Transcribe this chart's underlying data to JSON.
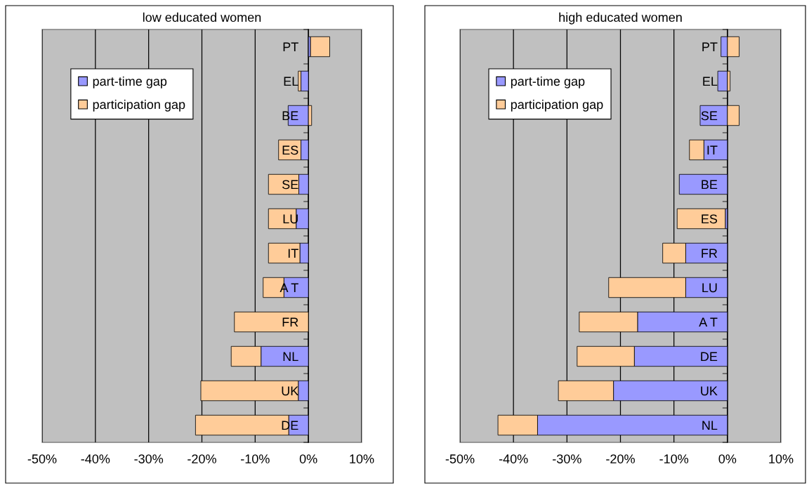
{
  "chart_data": [
    {
      "type": "bar",
      "title": "low educated women",
      "orientation": "horizontal",
      "stacked": true,
      "grid": "x",
      "legend": "top left",
      "categories": [
        "PT",
        "EL",
        "BE",
        "ES",
        "SE",
        "LU",
        "IT",
        "A T",
        "FR",
        "NL",
        "UK",
        "DE"
      ],
      "series": [
        {
          "name": "part-time gap",
          "color": "#9999ff",
          "values": [
            0.4,
            -1.4,
            -3.8,
            -1.4,
            -1.8,
            -2.3,
            -1.6,
            -4.6,
            null,
            -8.9,
            -1.9,
            -3.7
          ]
        },
        {
          "name": "participation gap",
          "color": "#ffcc99",
          "values": [
            3.6,
            -0.5,
            0.6,
            -4.2,
            -5.7,
            -5.2,
            -5.9,
            -3.9,
            -13.9,
            -5.6,
            -18.3,
            -17.5
          ]
        }
      ],
      "xlim": [
        -50,
        10
      ],
      "xticks": [
        {
          "value": -50,
          "label": "-50%"
        },
        {
          "value": -40,
          "label": "-40%"
        },
        {
          "value": -30,
          "label": "-30%"
        },
        {
          "value": -20,
          "label": "-20%"
        },
        {
          "value": -10,
          "label": "-10%"
        },
        {
          "value": 0,
          "label": "0%"
        },
        {
          "value": 10,
          "label": "10%"
        }
      ]
    },
    {
      "type": "bar",
      "title": "high educated women",
      "orientation": "horizontal",
      "stacked": true,
      "grid": "x",
      "legend": "top left",
      "categories": [
        "PT",
        "EL",
        "SE",
        "IT",
        "BE",
        "ES",
        "FR",
        "LU",
        "A T",
        "DE",
        "UK",
        "NL"
      ],
      "series": [
        {
          "name": "part-time gap",
          "color": "#9999ff",
          "values": [
            -1.2,
            -1.8,
            -5.1,
            -4.4,
            -9.0,
            -0.4,
            -7.8,
            -7.8,
            -16.8,
            -17.4,
            -21.3,
            -35.5
          ]
        },
        {
          "name": "participation gap",
          "color": "#ffcc99",
          "values": [
            2.2,
            0.5,
            2.2,
            -2.7,
            null,
            -9.0,
            -4.3,
            -14.4,
            -10.9,
            -10.7,
            -10.3,
            -7.4
          ]
        }
      ],
      "xlim": [
        -50,
        10
      ],
      "xticks": [
        {
          "value": -50,
          "label": "-50%"
        },
        {
          "value": -40,
          "label": "-40%"
        },
        {
          "value": -30,
          "label": "-30%"
        },
        {
          "value": -20,
          "label": "-20%"
        },
        {
          "value": -10,
          "label": "-10%"
        },
        {
          "value": 0,
          "label": "0%"
        },
        {
          "value": 10,
          "label": "10%"
        }
      ]
    }
  ]
}
